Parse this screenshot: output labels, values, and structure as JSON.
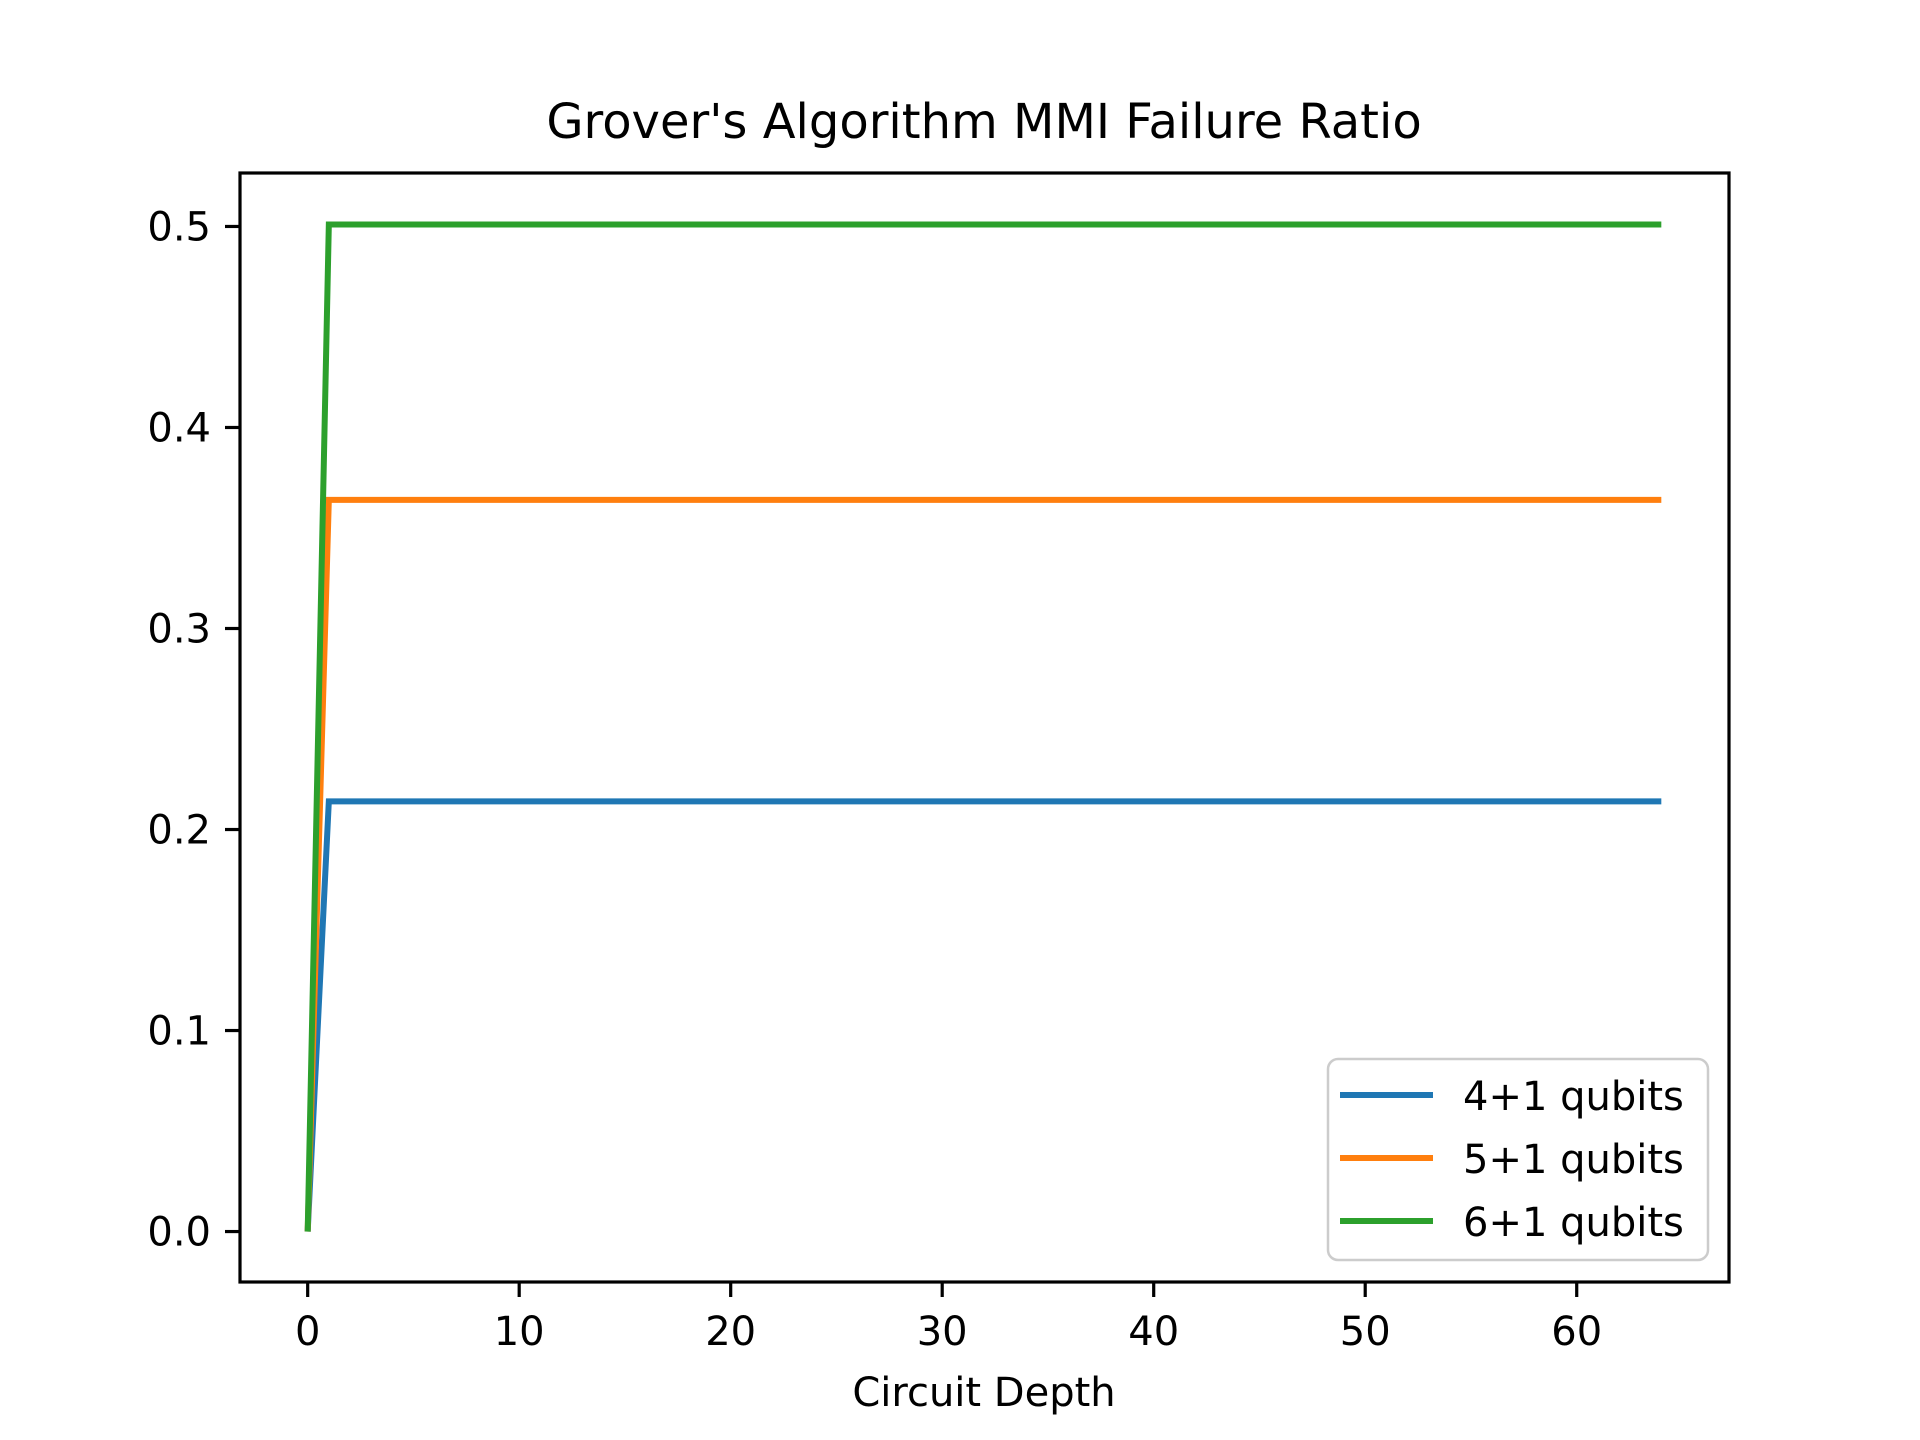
{
  "chart_data": {
    "type": "line",
    "title": "Grover's Algorithm MMI Failure Ratio",
    "xlabel": "Circuit Depth",
    "ylabel": "",
    "xlim": [
      -3.2,
      67.2
    ],
    "ylim": [
      -0.0251,
      0.5266
    ],
    "xticks": [
      0,
      10,
      20,
      30,
      40,
      50,
      60
    ],
    "xtick_labels": [
      "0",
      "10",
      "20",
      "30",
      "40",
      "50",
      "60"
    ],
    "yticks": [
      0.0,
      0.1,
      0.2,
      0.3,
      0.4,
      0.5
    ],
    "ytick_labels": [
      "0.0",
      "0.1",
      "0.2",
      "0.3",
      "0.4",
      "0.5"
    ],
    "grid": false,
    "legend": {
      "position": "lower right",
      "frame": true,
      "entries": [
        "4+1 qubits",
        "5+1 qubits",
        "6+1 qubits"
      ]
    },
    "series": [
      {
        "name": "4+1 qubits",
        "color": "#1f77b4",
        "x": [
          0,
          1,
          64
        ],
        "y": [
          0.0,
          0.214,
          0.214
        ]
      },
      {
        "name": "5+1 qubits",
        "color": "#ff7f0e",
        "x": [
          0,
          1,
          64
        ],
        "y": [
          0.0,
          0.364,
          0.364
        ]
      },
      {
        "name": "6+1 qubits",
        "color": "#2ca02c",
        "x": [
          0,
          1,
          64
        ],
        "y": [
          0.0,
          0.501,
          0.501
        ]
      }
    ],
    "styles": {
      "background": "#ffffff",
      "axis_color": "#000000",
      "legend_border_color": "#cccccc",
      "legend_background": "#ffffff"
    }
  }
}
